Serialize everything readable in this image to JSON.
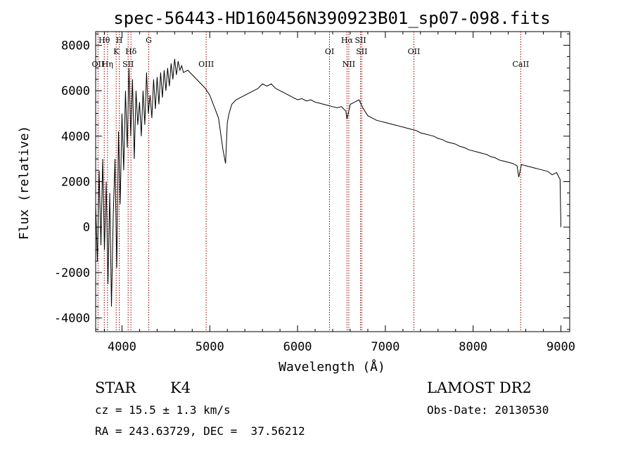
{
  "chart_data": {
    "type": "line",
    "title": "spec-56443-HD160456N390923B01_sp07-098.fits",
    "xlabel": "Wavelength (Å)",
    "ylabel": "Flux (relative)",
    "xlim": [
      3700,
      9100
    ],
    "ylim": [
      -4600,
      8600
    ],
    "xticks": [
      4000,
      5000,
      6000,
      7000,
      8000,
      9000
    ],
    "yticks": [
      -4000,
      -2000,
      0,
      2000,
      4000,
      6000,
      8000
    ],
    "grid": false,
    "series": [
      {
        "x": [
          3700,
          3720,
          3740,
          3760,
          3780,
          3800,
          3820,
          3840,
          3860,
          3880,
          3900,
          3920,
          3940,
          3960,
          3980,
          4000,
          4020,
          4040,
          4060,
          4080,
          4100,
          4120,
          4140,
          4160,
          4180,
          4200,
          4220,
          4240,
          4260,
          4280,
          4300,
          4320,
          4340,
          4360,
          4380,
          4400,
          4420,
          4440,
          4460,
          4480,
          4500,
          4520,
          4540,
          4560,
          4580,
          4600,
          4620,
          4640,
          4660,
          4680,
          4700,
          4750,
          4800,
          4850,
          4900,
          4950,
          5000,
          5050,
          5100,
          5150,
          5180,
          5200,
          5220,
          5250,
          5300,
          5350,
          5400,
          5450,
          5500,
          5550,
          5600,
          5650,
          5700,
          5750,
          5800,
          5850,
          5900,
          5950,
          6000,
          6050,
          6100,
          6150,
          6200,
          6250,
          6300,
          6350,
          6400,
          6450,
          6500,
          6550,
          6563,
          6580,
          6600,
          6650,
          6700,
          6750,
          6800,
          6850,
          6900,
          6950,
          7000,
          7050,
          7100,
          7150,
          7200,
          7250,
          7300,
          7350,
          7400,
          7450,
          7500,
          7550,
          7600,
          7650,
          7700,
          7750,
          7800,
          7850,
          7900,
          7950,
          8000,
          8050,
          8100,
          8150,
          8200,
          8250,
          8300,
          8350,
          8400,
          8450,
          8500,
          8520,
          8550,
          8600,
          8650,
          8700,
          8750,
          8800,
          8850,
          8900,
          8950,
          8990,
          9000
        ],
        "y": [
          1000,
          -1500,
          2500,
          -800,
          3000,
          -1000,
          2000,
          -2500,
          1500,
          -3500,
          500,
          3000,
          -1800,
          4200,
          1000,
          5000,
          2500,
          6000,
          3500,
          7000,
          4000,
          6500,
          3000,
          6000,
          4500,
          5500,
          4000,
          6000,
          4500,
          6800,
          5000,
          5800,
          4800,
          6500,
          5200,
          6600,
          5400,
          6800,
          5700,
          6900,
          6000,
          7000,
          6200,
          7200,
          6500,
          7400,
          6700,
          7300,
          6900,
          7100,
          6800,
          6900,
          6700,
          6500,
          6300,
          6100,
          5800,
          5300,
          4800,
          3400,
          2800,
          4600,
          5000,
          5400,
          5600,
          5700,
          5800,
          5900,
          6000,
          6100,
          6300,
          6200,
          6300,
          6100,
          6000,
          5900,
          5800,
          5700,
          5600,
          5650,
          5550,
          5600,
          5500,
          5450,
          5400,
          5350,
          5300,
          5250,
          5300,
          5100,
          4750,
          5050,
          5400,
          5500,
          5600,
          5200,
          4900,
          4800,
          4700,
          4650,
          4600,
          4550,
          4500,
          4450,
          4400,
          4350,
          4300,
          4250,
          4150,
          4100,
          4050,
          4000,
          3900,
          3850,
          3750,
          3700,
          3650,
          3550,
          3500,
          3400,
          3350,
          3300,
          3250,
          3200,
          3100,
          3050,
          2950,
          2900,
          2850,
          2800,
          2700,
          2200,
          2750,
          2700,
          2650,
          2600,
          2550,
          2500,
          2450,
          2300,
          2400,
          2100,
          0
        ]
      }
    ],
    "lines": [
      {
        "x": 3727,
        "label": "OII",
        "row": 3
      },
      {
        "x": 3798,
        "label": "Hθ",
        "row": 1
      },
      {
        "x": 3835,
        "label": "Hη",
        "row": 3
      },
      {
        "x": 3934,
        "label": "K",
        "row": 2
      },
      {
        "x": 3969,
        "label": "H",
        "row": 1
      },
      {
        "x": 4070,
        "label": "SII",
        "row": 3
      },
      {
        "x": 4102,
        "label": "Hδ",
        "row": 2
      },
      {
        "x": 4305,
        "label": "G",
        "row": 1
      },
      {
        "x": 4959,
        "label": "OIII",
        "row": 3
      },
      {
        "x": 6364,
        "label": "OI",
        "row": 2
      },
      {
        "x": 6563,
        "label": "Hα",
        "row": 1
      },
      {
        "x": 6584,
        "label": "NII",
        "row": 3
      },
      {
        "x": 6717,
        "label": "SII",
        "row": 1
      },
      {
        "x": 6731,
        "label": "SII",
        "row": 2
      },
      {
        "x": 7325,
        "label": "OII",
        "row": 2
      },
      {
        "x": 8542,
        "label": "CaII",
        "row": 3
      }
    ],
    "colors": {
      "line_marker": "#8b0000",
      "spectrum": "#000000"
    }
  },
  "info": {
    "class": "STAR",
    "subclass": "K4",
    "survey": "LAMOST DR2",
    "cz": "cz = 15.5 ± 1.3 km/s",
    "obs_date": "Obs-Date: 20130530",
    "radec": "RA = 243.63729, DEC =  37.56212"
  }
}
